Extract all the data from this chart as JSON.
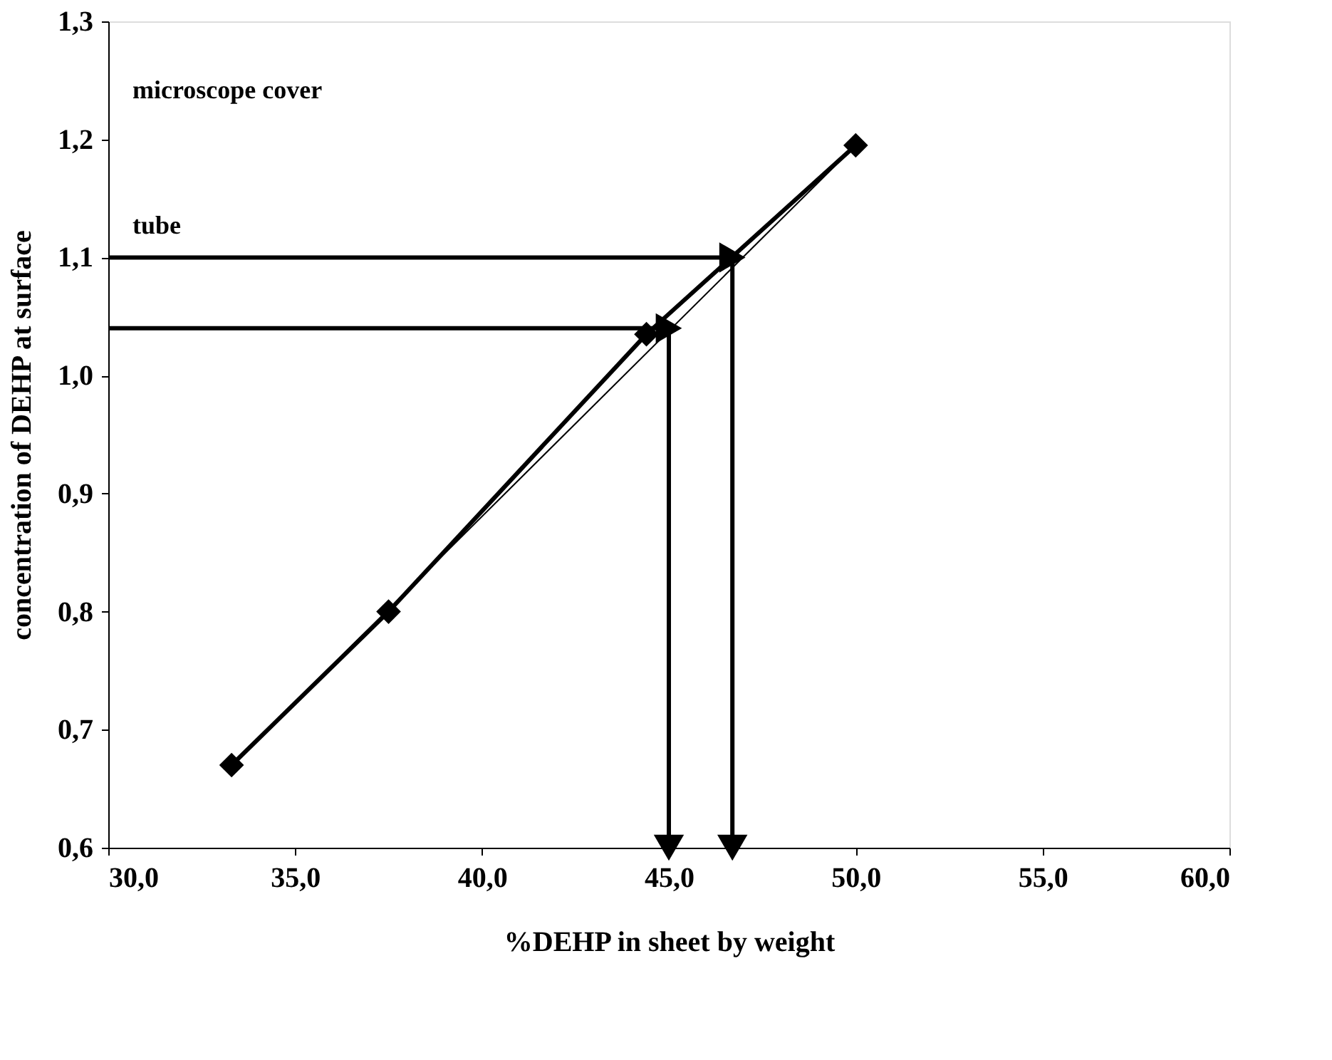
{
  "chart_data": {
    "type": "line",
    "xlabel": "%DEHP in sheet by weight",
    "ylabel": "concentration of DEHP at surface",
    "xlim": [
      30,
      60
    ],
    "ylim": [
      0.6,
      1.3
    ],
    "xticks": [
      {
        "value": 30,
        "label": "30,0"
      },
      {
        "value": 35,
        "label": "35,0"
      },
      {
        "value": 40,
        "label": "40,0"
      },
      {
        "value": 45,
        "label": "45,0"
      },
      {
        "value": 50,
        "label": "50,0"
      },
      {
        "value": 55,
        "label": "55,0"
      },
      {
        "value": 60,
        "label": "60,0"
      }
    ],
    "yticks": [
      {
        "value": 0.6,
        "label": "0,6"
      },
      {
        "value": 0.7,
        "label": "0,7"
      },
      {
        "value": 0.8,
        "label": "0,8"
      },
      {
        "value": 0.9,
        "label": "0,9"
      },
      {
        "value": 1.0,
        "label": "1,0"
      },
      {
        "value": 1.1,
        "label": "1,1"
      },
      {
        "value": 1.2,
        "label": "1,2"
      },
      {
        "value": 1.3,
        "label": "1,3"
      }
    ],
    "grid": false,
    "series": [
      {
        "color": "#000000",
        "marker": "diamond",
        "x": [
          33.3,
          37.5,
          44.4,
          50.0
        ],
        "values": [
          0.67,
          0.8,
          1.035,
          1.195
        ]
      },
      {
        "color": "#000000",
        "marker": "none",
        "x": [
          33.3,
          50.0
        ],
        "values": [
          0.67,
          1.195
        ]
      },
      {
        "color": "#000000",
        "marker": "triangle",
        "x": [
          30,
          46.7,
          46.7
        ],
        "values": [
          1.1,
          1.1,
          0.6
        ]
      },
      {
        "color": "#000000",
        "marker": "triangle",
        "x": [
          30,
          45.0,
          45.0
        ],
        "values": [
          1.04,
          1.04,
          0.6
        ]
      }
    ],
    "annotations": [
      "microscope cover",
      "tube"
    ]
  }
}
